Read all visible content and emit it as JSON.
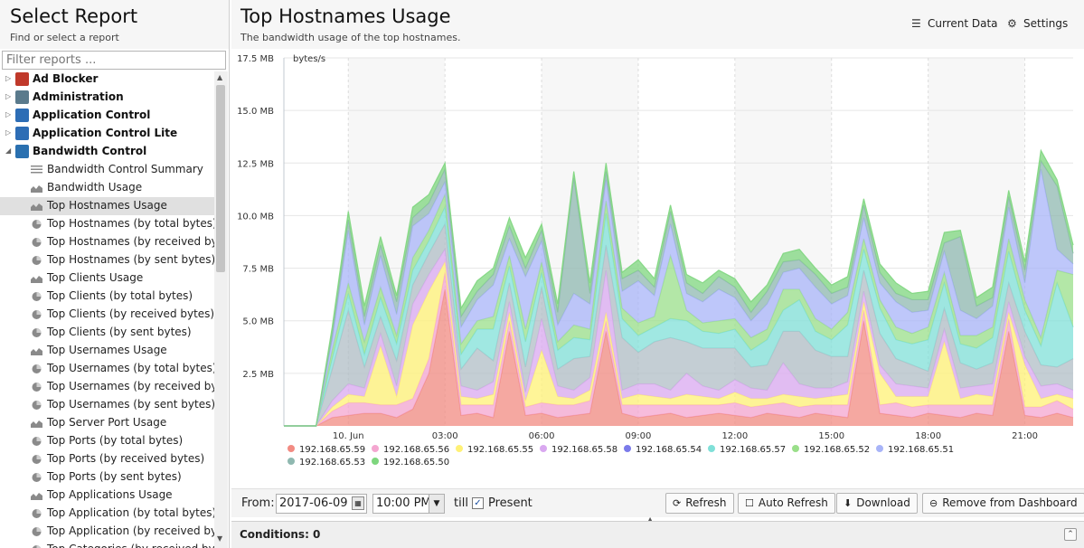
{
  "left": {
    "title": "Select Report",
    "subtitle": "Find or select a report",
    "filter_placeholder": "Filter reports ...",
    "tree": [
      {
        "kind": "category",
        "label": "Ad Blocker",
        "icon": "ad-blocker-icon",
        "color": "#c0392b",
        "expanded": false
      },
      {
        "kind": "category",
        "label": "Administration",
        "icon": "administration-icon",
        "color": "#5a7a8c",
        "expanded": false
      },
      {
        "kind": "category",
        "label": "Application Control",
        "icon": "application-control-icon",
        "color": "#2d6db5",
        "expanded": false
      },
      {
        "kind": "category",
        "label": "Application Control Lite",
        "icon": "application-control-lite-icon",
        "color": "#2d6db5",
        "expanded": false
      },
      {
        "kind": "category",
        "label": "Bandwidth Control",
        "icon": "bandwidth-control-icon",
        "color": "#2a70b0",
        "expanded": true
      },
      {
        "kind": "leaf",
        "label": "Bandwidth Control Summary",
        "icon": "text-report-icon"
      },
      {
        "kind": "leaf",
        "label": "Bandwidth Usage",
        "icon": "area-chart-icon"
      },
      {
        "kind": "leaf",
        "label": "Top Hostnames Usage",
        "icon": "area-chart-icon",
        "selected": true
      },
      {
        "kind": "leaf",
        "label": "Top Hostnames (by total bytes)",
        "icon": "pie-chart-icon"
      },
      {
        "kind": "leaf",
        "label": "Top Hostnames (by received byte...",
        "icon": "pie-chart-icon"
      },
      {
        "kind": "leaf",
        "label": "Top Hostnames (by sent bytes)",
        "icon": "pie-chart-icon"
      },
      {
        "kind": "leaf",
        "label": "Top Clients Usage",
        "icon": "area-chart-icon"
      },
      {
        "kind": "leaf",
        "label": "Top Clients (by total bytes)",
        "icon": "pie-chart-icon"
      },
      {
        "kind": "leaf",
        "label": "Top Clients (by received bytes)",
        "icon": "pie-chart-icon"
      },
      {
        "kind": "leaf",
        "label": "Top Clients (by sent bytes)",
        "icon": "pie-chart-icon"
      },
      {
        "kind": "leaf",
        "label": "Top Usernames Usage",
        "icon": "area-chart-icon"
      },
      {
        "kind": "leaf",
        "label": "Top Usernames (by total bytes)",
        "icon": "pie-chart-icon"
      },
      {
        "kind": "leaf",
        "label": "Top Usernames (by received bytes)",
        "icon": "pie-chart-icon"
      },
      {
        "kind": "leaf",
        "label": "Top Usernames (by sent bytes)",
        "icon": "pie-chart-icon"
      },
      {
        "kind": "leaf",
        "label": "Top Server Port Usage",
        "icon": "area-chart-icon"
      },
      {
        "kind": "leaf",
        "label": "Top Ports (by total bytes)",
        "icon": "pie-chart-icon"
      },
      {
        "kind": "leaf",
        "label": "Top Ports (by received bytes)",
        "icon": "pie-chart-icon"
      },
      {
        "kind": "leaf",
        "label": "Top Ports (by sent bytes)",
        "icon": "pie-chart-icon"
      },
      {
        "kind": "leaf",
        "label": "Top Applications Usage",
        "icon": "area-chart-icon"
      },
      {
        "kind": "leaf",
        "label": "Top Application (by total bytes)",
        "icon": "pie-chart-icon"
      },
      {
        "kind": "leaf",
        "label": "Top Application (by received bytes)",
        "icon": "pie-chart-icon"
      },
      {
        "kind": "leaf",
        "label": "Top Categories (by received bytes)",
        "icon": "pie-chart-icon"
      }
    ]
  },
  "header": {
    "title": "Top Hostnames Usage",
    "subtitle": "The bandwidth usage of the top hostnames.",
    "current_data_label": "Current Data",
    "current_data_icon": "list-icon",
    "settings_label": "Settings",
    "settings_icon": "gear-icon"
  },
  "toolbar": {
    "from_label": "From:",
    "from_date": "2017-06-09",
    "from_time": "10:00 PM",
    "till_label": "till",
    "present_label": "Present",
    "present_checked": true,
    "refresh_label": "Refresh",
    "auto_refresh_label": "Auto Refresh",
    "download_label": "Download",
    "remove_label": "Remove from Dashboard"
  },
  "conditions": {
    "label": "Conditions: 0"
  },
  "chart_data": {
    "type": "area",
    "stacked": true,
    "ylabel": "bytes/s",
    "ylim": [
      0,
      17.5
    ],
    "y_unit": "MB",
    "y_ticks": [
      "2.5 MB",
      "5.0 MB",
      "7.5 MB",
      "10.0 MB",
      "12.5 MB",
      "15.0 MB",
      "17.5 MB"
    ],
    "x_ticks": [
      "10. Jun",
      "03:00",
      "06:00",
      "09:00",
      "12:00",
      "15:00",
      "18:00",
      "21:00"
    ],
    "x_start_hour": 22,
    "x_end_hour": 46.5,
    "legend_position": "bottom",
    "x": [
      22,
      23,
      23.5,
      24,
      24.5,
      25,
      25.5,
      26,
      26.5,
      27,
      27.5,
      28,
      28.5,
      29,
      29.5,
      30,
      30.5,
      31,
      31.5,
      32,
      32.5,
      33,
      33.5,
      34,
      34.5,
      35,
      35.5,
      36,
      36.5,
      37,
      37.5,
      38,
      38.5,
      39,
      39.5,
      40,
      40.5,
      41,
      41.5,
      42,
      42.5,
      43,
      43.5,
      44,
      44.5,
      45,
      45.5,
      46,
      46.5
    ],
    "series": [
      {
        "name": "192.168.65.59",
        "color": "#f28b82",
        "values": [
          0,
          0,
          0.4,
          0.5,
          0.6,
          0.6,
          0.4,
          0.8,
          2.5,
          6.5,
          0.5,
          0.6,
          0.4,
          4.5,
          0.5,
          0.6,
          0.4,
          0.5,
          0.6,
          4.5,
          0.6,
          0.4,
          0.5,
          0.6,
          0.4,
          0.5,
          0.6,
          0.5,
          0.4,
          0.6,
          0.5,
          0.4,
          0.6,
          0.5,
          0.4,
          5.0,
          0.6,
          0.5,
          0.4,
          0.6,
          0.5,
          0.4,
          0.6,
          0.5,
          4.5,
          0.5,
          0.4,
          0.6,
          0.4
        ]
      },
      {
        "name": "192.168.65.56",
        "color": "#f4a6d0",
        "values": [
          0,
          0,
          0.3,
          0.6,
          0.5,
          0.4,
          0.6,
          0.5,
          0.7,
          0.8,
          0.5,
          0.4,
          0.6,
          0.5,
          0.4,
          0.5,
          0.6,
          0.5,
          0.6,
          0.5,
          0.4,
          0.6,
          0.5,
          0.4,
          0.6,
          0.5,
          0.4,
          0.6,
          0.5,
          0.4,
          0.6,
          0.5,
          0.4,
          0.5,
          0.6,
          0.5,
          0.4,
          0.6,
          0.5,
          0.4,
          0.5,
          0.6,
          0.4,
          0.5,
          0.6,
          0.4,
          0.5,
          0.6,
          0.4
        ]
      },
      {
        "name": "192.168.65.55",
        "color": "#fff176",
        "values": [
          0,
          0,
          0.2,
          0.4,
          0.3,
          2.8,
          0.4,
          3.5,
          3.2,
          0.5,
          0.4,
          0.3,
          0.5,
          0.4,
          0.3,
          2.5,
          0.4,
          0.3,
          0.5,
          0.4,
          0.3,
          0.5,
          0.4,
          0.3,
          0.5,
          0.4,
          0.3,
          0.5,
          0.4,
          0.3,
          0.4,
          0.5,
          0.3,
          0.4,
          0.5,
          0.4,
          1.5,
          0.3,
          0.5,
          0.4,
          3.0,
          0.3,
          0.5,
          0.4,
          0.3,
          2.0,
          0.4,
          0.3,
          0.5
        ]
      },
      {
        "name": "192.168.65.58",
        "color": "#d9a8f0",
        "values": [
          0,
          0,
          0.3,
          0.5,
          0.4,
          0.6,
          0.5,
          1.0,
          0.8,
          0.6,
          0.5,
          0.4,
          0.6,
          0.5,
          0.4,
          1.5,
          0.5,
          0.4,
          0.6,
          2.0,
          0.4,
          0.5,
          0.6,
          0.4,
          1.0,
          0.5,
          0.4,
          0.6,
          0.5,
          0.4,
          1.5,
          0.6,
          0.5,
          0.4,
          0.6,
          0.5,
          0.4,
          0.6,
          0.5,
          0.4,
          0.6,
          0.5,
          0.4,
          0.6,
          0.5,
          0.4,
          0.6,
          0.5,
          0.4
        ]
      },
      {
        "name": "192.168.65.54",
        "color": "#b0bec5",
        "values": [
          0,
          0,
          1.5,
          3.5,
          1.0,
          0.8,
          1.2,
          0.9,
          1.0,
          1.2,
          0.8,
          2.0,
          1.0,
          0.9,
          1.2,
          1.5,
          0.8,
          1.5,
          1.0,
          1.2,
          2.5,
          1.5,
          2.0,
          2.5,
          1.5,
          1.8,
          2.0,
          1.5,
          1.0,
          1.2,
          1.5,
          2.5,
          1.8,
          1.5,
          1.2,
          1.0,
          1.5,
          1.2,
          1.0,
          0.8,
          1.0,
          1.2,
          0.8,
          1.0,
          0.9,
          1.2,
          1.0,
          0.8,
          1.5
        ]
      },
      {
        "name": "192.168.65.57",
        "color": "#80e0d8",
        "values": [
          0,
          0,
          0.5,
          0.8,
          0.6,
          0.9,
          0.8,
          0.7,
          0.6,
          0.8,
          0.7,
          0.9,
          1.5,
          0.8,
          1.2,
          0.7,
          0.9,
          1.0,
          0.8,
          1.5,
          0.9,
          0.8,
          0.7,
          0.9,
          1.0,
          0.8,
          0.7,
          0.9,
          0.8,
          1.2,
          1.0,
          1.5,
          0.9,
          0.8,
          1.5,
          1.0,
          1.2,
          0.9,
          1.0,
          1.5,
          1.2,
          0.9,
          1.0,
          1.2,
          1.5,
          1.0,
          0.9,
          4.0,
          1.5
        ]
      },
      {
        "name": "192.168.65.52",
        "color": "#9adf8a",
        "values": [
          0,
          0,
          0.4,
          0.5,
          0.6,
          0.5,
          0.4,
          0.6,
          0.5,
          0.6,
          0.5,
          0.4,
          0.6,
          0.5,
          0.6,
          0.5,
          0.4,
          0.6,
          0.5,
          0.6,
          0.5,
          0.6,
          0.5,
          3.0,
          0.5,
          0.4,
          0.6,
          0.5,
          0.6,
          0.5,
          1.0,
          0.5,
          0.6,
          0.5,
          0.6,
          0.5,
          0.4,
          0.6,
          0.5,
          0.6,
          0.5,
          0.4,
          0.6,
          0.5,
          0.6,
          0.5,
          0.4,
          0.6,
          2.5
        ]
      },
      {
        "name": "192.168.65.51",
        "color": "#a8b4f8",
        "values": [
          0,
          0,
          0.5,
          2.5,
          0.8,
          1.5,
          1.0,
          1.5,
          0.8,
          0.6,
          0.8,
          1.0,
          1.5,
          0.8,
          2.5,
          1.0,
          0.8,
          1.5,
          1.2,
          1.0,
          0.8,
          2.0,
          1.0,
          1.5,
          0.8,
          1.0,
          1.5,
          1.0,
          0.8,
          1.2,
          0.8,
          1.0,
          1.5,
          1.2,
          0.8,
          1.0,
          0.8,
          1.2,
          1.0,
          0.8,
          1.0,
          1.2,
          0.8,
          1.0,
          1.5,
          0.8,
          8.0,
          1.0,
          0.5
        ]
      },
      {
        "name": "192.168.65.53",
        "color": "#8fb8b0",
        "values": [
          0,
          0,
          0.3,
          0.5,
          0.4,
          0.5,
          0.6,
          0.4,
          0.5,
          0.6,
          0.5,
          0.4,
          0.5,
          0.6,
          0.4,
          0.5,
          0.6,
          5.5,
          0.5,
          0.4,
          0.6,
          0.5,
          0.4,
          0.6,
          0.5,
          0.4,
          0.6,
          0.5,
          0.4,
          0.6,
          0.5,
          0.4,
          0.6,
          0.5,
          0.4,
          0.6,
          0.5,
          0.4,
          0.6,
          0.5,
          0.4,
          3.5,
          0.6,
          0.4,
          0.5,
          0.6,
          0.4,
          3.0,
          0.5
        ]
      },
      {
        "name": "192.168.65.50",
        "color": "#7ed67e",
        "values": [
          0,
          0,
          0.3,
          0.4,
          0.5,
          0.4,
          0.3,
          0.5,
          0.4,
          0.3,
          0.4,
          0.5,
          0.3,
          0.4,
          0.5,
          0.3,
          0.4,
          0.3,
          0.5,
          0.4,
          0.3,
          0.5,
          0.4,
          0.3,
          0.4,
          0.5,
          0.3,
          0.4,
          0.5,
          0.3,
          0.4,
          0.5,
          0.3,
          0.4,
          0.5,
          0.3,
          0.4,
          0.5,
          0.3,
          0.4,
          0.5,
          0.3,
          0.4,
          0.5,
          0.3,
          0.4,
          0.5,
          0.3,
          0.4
        ]
      }
    ]
  }
}
